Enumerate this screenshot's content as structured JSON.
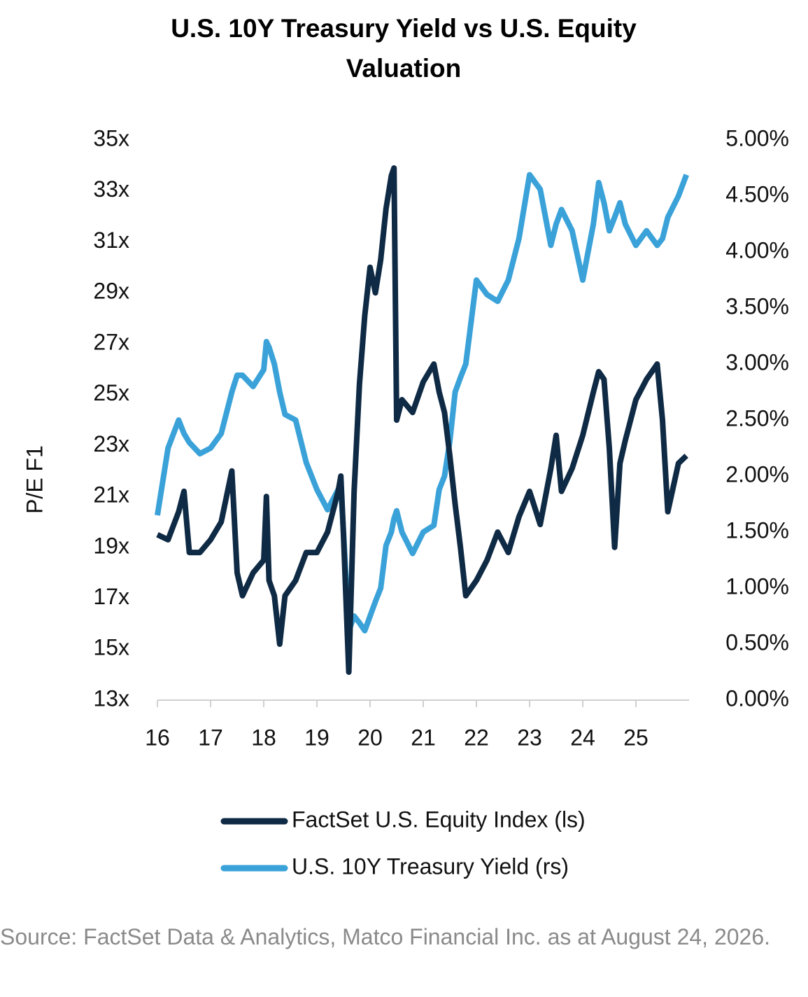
{
  "chart_data": {
    "type": "line",
    "title": "U.S. 10Y Treasury Yield vs U.S. Equity Valuation",
    "y_label": "P/E F1",
    "source": "Source: FactSet Data & Analytics, Matco Financial Inc. as at August 24, 2026.",
    "x": [
      16.0,
      16.2,
      16.4,
      16.5,
      16.6,
      16.8,
      17.0,
      17.2,
      17.4,
      17.5,
      17.6,
      17.8,
      18.0,
      18.05,
      18.1,
      18.2,
      18.3,
      18.4,
      18.6,
      18.8,
      19.0,
      19.2,
      19.4,
      19.45,
      19.5,
      19.6,
      19.7,
      19.8,
      19.9,
      20.0,
      20.1,
      20.2,
      20.3,
      20.4,
      20.45,
      20.5,
      20.6,
      20.8,
      21.0,
      21.2,
      21.3,
      21.4,
      21.5,
      21.6,
      21.7,
      21.8,
      22.0,
      22.2,
      22.4,
      22.6,
      22.8,
      23.0,
      23.2,
      23.4,
      23.5,
      23.6,
      23.8,
      24.0,
      24.2,
      24.3,
      24.4,
      24.5,
      24.6,
      24.7,
      24.8,
      25.0,
      25.2,
      25.4,
      25.5,
      25.6,
      25.8,
      25.95
    ],
    "series": [
      {
        "name": "FactSet U.S. Equity Index (ls)",
        "color": "#0f2a44",
        "values": [
          19.5,
          19.3,
          20.4,
          21.2,
          18.8,
          18.8,
          19.3,
          20.0,
          22.0,
          18.0,
          17.1,
          18.0,
          18.5,
          21.0,
          17.7,
          17.1,
          15.2,
          17.1,
          17.7,
          18.8,
          18.8,
          19.6,
          21.2,
          21.8,
          19.5,
          14.1,
          21.2,
          25.4,
          28.1,
          30.0,
          29.0,
          30.3,
          32.3,
          33.6,
          33.9,
          24.0,
          24.8,
          24.3,
          25.5,
          26.2,
          25.1,
          24.3,
          22.6,
          20.7,
          19.0,
          17.1,
          17.7,
          18.5,
          19.6,
          18.8,
          20.2,
          21.2,
          19.9,
          22.1,
          23.4,
          21.2,
          22.1,
          23.4,
          25.1,
          25.9,
          25.6,
          22.9,
          19.0,
          22.3,
          23.2,
          24.8,
          25.6,
          26.2,
          24.0,
          20.4,
          22.3,
          22.6
        ]
      },
      {
        "name": "U.S. 10Y Treasury Yield (rs)",
        "color": "#3aa2d8",
        "axis": "y2",
        "values": [
          1.65,
          2.25,
          2.5,
          2.38,
          2.3,
          2.2,
          2.25,
          2.38,
          2.75,
          2.9,
          2.9,
          2.8,
          2.95,
          3.2,
          3.15,
          3.0,
          2.75,
          2.55,
          2.5,
          2.12,
          1.88,
          1.7,
          1.88,
          1.9,
          1.5,
          0.62,
          0.75,
          0.69,
          0.62,
          0.75,
          0.88,
          1.0,
          1.38,
          1.5,
          1.62,
          1.69,
          1.5,
          1.31,
          1.5,
          1.56,
          1.88,
          2.0,
          2.31,
          2.75,
          2.88,
          3.0,
          3.75,
          3.62,
          3.56,
          3.75,
          4.12,
          4.69,
          4.56,
          4.06,
          4.25,
          4.38,
          4.19,
          3.75,
          4.25,
          4.62,
          4.44,
          4.19,
          4.31,
          4.44,
          4.25,
          4.06,
          4.19,
          4.06,
          4.12,
          4.31,
          4.5,
          4.69
        ]
      }
    ],
    "xlim": [
      16,
      26
    ],
    "xticks": [
      16,
      17,
      18,
      19,
      20,
      21,
      22,
      23,
      24,
      25
    ],
    "ylim": [
      13,
      35
    ],
    "yticks": [
      {
        "value": 13,
        "label": "13x"
      },
      {
        "value": 15,
        "label": "15x"
      },
      {
        "value": 17,
        "label": "17x"
      },
      {
        "value": 19,
        "label": "19x"
      },
      {
        "value": 21,
        "label": "21x"
      },
      {
        "value": 23,
        "label": "23x"
      },
      {
        "value": 25,
        "label": "25x"
      },
      {
        "value": 27,
        "label": "27x"
      },
      {
        "value": 29,
        "label": "29x"
      },
      {
        "value": 31,
        "label": "31x"
      },
      {
        "value": 33,
        "label": "33x"
      },
      {
        "value": 35,
        "label": "35x"
      }
    ],
    "y2lim": [
      0,
      5
    ],
    "y2ticks": [
      {
        "value": 0,
        "label": "0.00%"
      },
      {
        "value": 0.5,
        "label": "0.50%"
      },
      {
        "value": 1,
        "label": "1.00%"
      },
      {
        "value": 1.5,
        "label": "1.50%"
      },
      {
        "value": 2,
        "label": "2.00%"
      },
      {
        "value": 2.5,
        "label": "2.50%"
      },
      {
        "value": 3,
        "label": "3.00%"
      },
      {
        "value": 3.5,
        "label": "3.50%"
      },
      {
        "value": 4,
        "label": "4.00%"
      },
      {
        "value": 4.5,
        "label": "4.50%"
      },
      {
        "value": 5,
        "label": "5.00%"
      }
    ],
    "grid": false,
    "legend": "bottom"
  }
}
